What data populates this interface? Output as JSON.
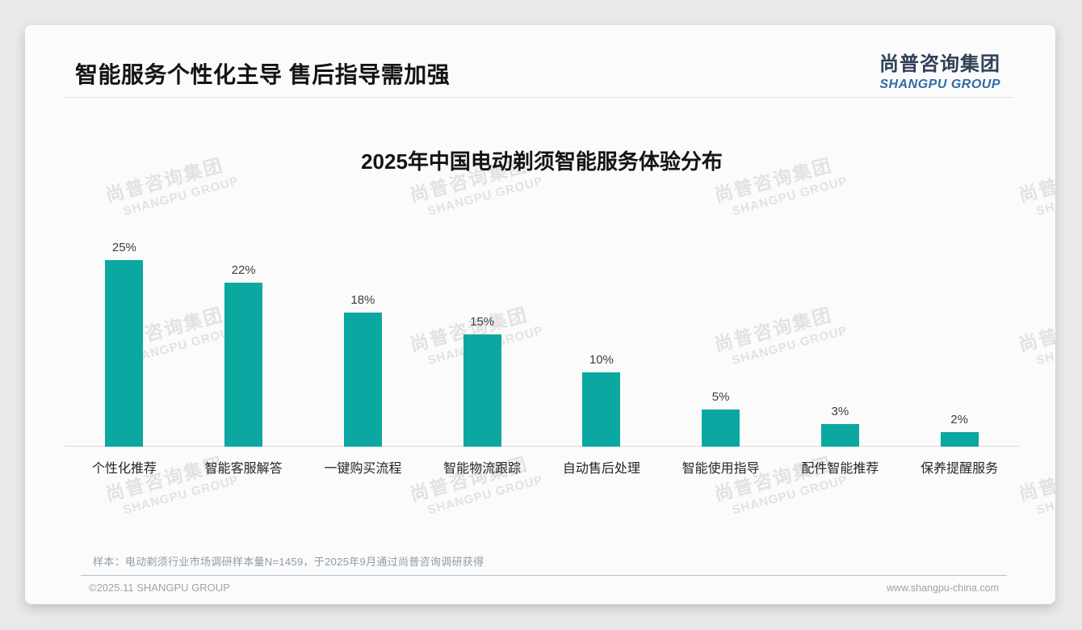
{
  "header": {
    "title": "智能服务个性化主导 售后指导需加强"
  },
  "logo": {
    "name_cn": "尚普咨询集团",
    "name_en": "SHANGPU GROUP"
  },
  "watermark": {
    "line_cn": "尚普咨询集团",
    "line_en": "SHANGPU GROUP"
  },
  "chart_data": {
    "type": "bar",
    "title": "2025年中国电动剃须智能服务体验分布",
    "categories": [
      "个性化推荐",
      "智能客服解答",
      "一键购买流程",
      "智能物流跟踪",
      "自动售后处理",
      "智能使用指导",
      "配件智能推荐",
      "保养提醒服务"
    ],
    "values": [
      25,
      22,
      18,
      15,
      10,
      5,
      3,
      2
    ],
    "value_labels": [
      "25%",
      "22%",
      "18%",
      "15%",
      "10%",
      "5%",
      "3%",
      "2%"
    ],
    "unit": "%",
    "ylim": [
      0,
      27
    ],
    "grid": false,
    "legend": "none",
    "bar_color": "#0AA8A1",
    "axis_color": "#D9D9D9"
  },
  "footnote": {
    "sample_note": "样本：电动剃须行业市场调研样本量N=1459，于2025年9月通过尚普咨询调研获得"
  },
  "footer": {
    "copyright": "©2025.11 SHANGPU GROUP",
    "website": "www.shangpu-china.com"
  }
}
